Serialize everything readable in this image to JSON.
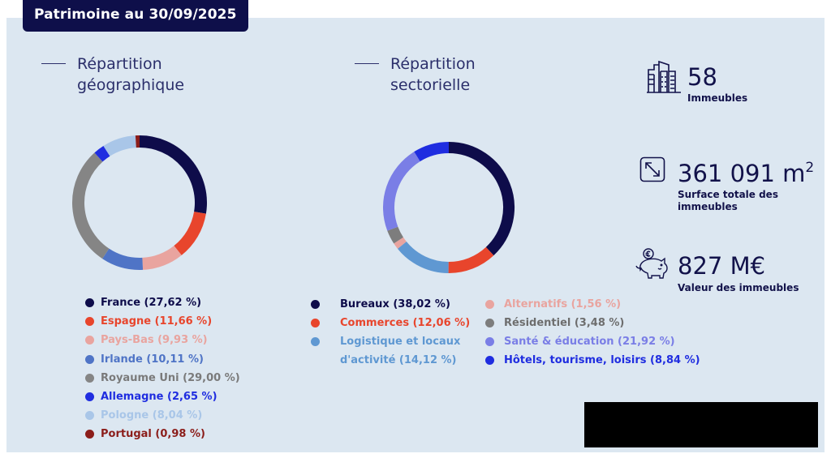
{
  "header": {
    "title": "Patrimoine au 30/09/2025"
  },
  "sections": {
    "geographic": {
      "title_line1": "Répartition",
      "title_line2": "géographique"
    },
    "sector": {
      "title_line1": "Répartition",
      "title_line2": "sectorielle"
    }
  },
  "stats": [
    {
      "icon": "buildings-icon",
      "value": "58",
      "label": "Immeubles"
    },
    {
      "icon": "resize-arrow-icon",
      "value": "361 091 m",
      "value_sup": "2",
      "label_line1": "Surface totale des",
      "label_line2": "immeubles"
    },
    {
      "icon": "piggy-bank-euro-icon",
      "value": "827 M€",
      "label": "Valeur des immeubles"
    }
  ],
  "chart_data": [
    {
      "type": "pie",
      "subtype": "donut",
      "title": "Répartition géographique",
      "categories": [
        "France",
        "Espagne",
        "Pays-Bas",
        "Irlande",
        "Royaume Uni",
        "Allemagne",
        "Pologne",
        "Portugal"
      ],
      "values": [
        27.62,
        11.66,
        9.93,
        10.11,
        29.0,
        2.65,
        8.04,
        0.98
      ],
      "colors": [
        "#0e0c4a",
        "#e8452c",
        "#e9a49f",
        "#4f74c6",
        "#858585",
        "#1f2de0",
        "#a9c6e8",
        "#8b1d1a"
      ],
      "legend": [
        {
          "label": "France (27,62 %)",
          "color": "#0e0c4a",
          "text_color": "#0e0c4a"
        },
        {
          "label": "Espagne (11,66 %)",
          "color": "#e8452c",
          "text_color": "#e8452c"
        },
        {
          "label": "Pays-Bas (9,93 %)",
          "color": "#e9a49f",
          "text_color": "#e9a49f"
        },
        {
          "label": "Irlande (10,11 %)",
          "color": "#4f74c6",
          "text_color": "#4f74c6"
        },
        {
          "label": "Royaume Uni (29,00 %)",
          "color": "#858585",
          "text_color": "#7a7a7a"
        },
        {
          "label": "Allemagne (2,65 %)",
          "color": "#1f2de0",
          "text_color": "#1f2de0"
        },
        {
          "label": "Pologne (8,04 %)",
          "color": "#a9c6e8",
          "text_color": "#a9c6e8"
        },
        {
          "label": "Portugal (0,98 %)",
          "color": "#8b1d1a",
          "text_color": "#8b1d1a"
        }
      ],
      "legend_position": "bottom"
    },
    {
      "type": "pie",
      "subtype": "donut",
      "title": "Répartition sectorielle",
      "categories": [
        "Bureaux",
        "Commerces",
        "Logistique et locaux d'activité",
        "Alternatifs",
        "Résidentiel",
        "Santé & éducation",
        "Hôtels, tourisme, loisirs"
      ],
      "values": [
        38.02,
        12.06,
        14.12,
        1.56,
        3.48,
        21.92,
        8.84
      ],
      "colors": [
        "#0e0c4a",
        "#e8452c",
        "#5f98d2",
        "#e9a49f",
        "#7d7d7d",
        "#7a7ee6",
        "#1f2de0"
      ],
      "legend": [
        {
          "line1": "Bureaux (38,02 %)",
          "color": "#0e0c4a",
          "text_color": "#0e0c4a"
        },
        {
          "line1": "Commerces (12,06 %)",
          "color": "#e8452c",
          "text_color": "#e8452c"
        },
        {
          "line1": "Logistique et locaux",
          "line2": "d'activité (14,12 %)",
          "color": "#5f98d2",
          "text_color": "#5f98d2"
        },
        {
          "line1": "Alternatifs (1,56 %)",
          "color": "#e9a49f",
          "text_color": "#e9a49f"
        },
        {
          "line1": "Résidentiel (3,48 %)",
          "color": "#7d7d7d",
          "text_color": "#6e6e6e"
        },
        {
          "line1": "Santé & éducation (21,92 %)",
          "color": "#7a7ee6",
          "text_color": "#7a7ee6"
        },
        {
          "line1": "Hôtels, tourisme, loisirs (8,84 %)",
          "color": "#1f2de0",
          "text_color": "#1f2de0"
        }
      ],
      "legend_position": "bottom"
    }
  ]
}
